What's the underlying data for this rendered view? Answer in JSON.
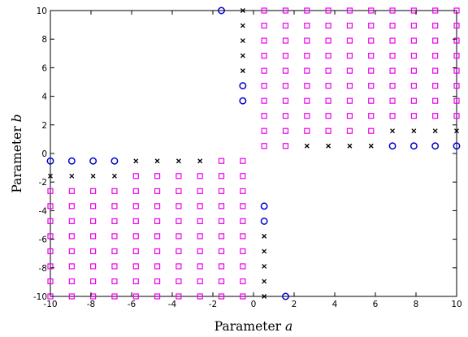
{
  "chart_data": {
    "type": "scatter",
    "xlabel": {
      "text": "Parameter ",
      "var": "a"
    },
    "ylabel": {
      "text": "Parameter ",
      "var": "b"
    },
    "xlim": [
      -10,
      10
    ],
    "ylim": [
      -10,
      10
    ],
    "xticks": [
      "-10",
      "-8",
      "-6",
      "-4",
      "-2",
      "0",
      "2",
      "4",
      "6",
      "8",
      "10"
    ],
    "yticks": [
      "-10",
      "-8",
      "-6",
      "-4",
      "-2",
      "0",
      "2",
      "4",
      "6",
      "8",
      "10"
    ],
    "grid": false,
    "legend": "none",
    "colors": {
      "square": "#ee00ee",
      "circle": "#0000cc",
      "cross": "#000000"
    },
    "grid_step_coords": [
      -10,
      -8.947,
      -7.895,
      -6.842,
      -5.789,
      -4.737,
      -3.684,
      -2.632,
      -1.579,
      -0.526,
      0.526,
      1.579,
      2.632,
      3.684,
      4.737,
      5.789,
      6.842,
      7.895,
      8.947,
      10
    ],
    "lower_left_block": {
      "circles": [
        [
          -10,
          -0.526
        ],
        [
          -8.947,
          -0.526
        ],
        [
          -7.895,
          -0.526
        ],
        [
          -6.842,
          -0.526
        ]
      ],
      "crosses": [
        [
          -5.789,
          -0.526
        ],
        [
          -4.737,
          -0.526
        ],
        [
          -3.684,
          -0.526
        ],
        [
          -2.632,
          -0.526
        ],
        [
          -10,
          -1.579
        ],
        [
          -8.947,
          -1.579
        ],
        [
          -7.895,
          -1.579
        ],
        [
          -6.842,
          -1.579
        ]
      ],
      "squares_region": {
        "x_from": -10,
        "x_to": -0.526,
        "y_from": -10,
        "y_to": -2.632,
        "extra_row": {
          "y": -1.579,
          "x_from": -5.789,
          "x_to": -0.526
        },
        "extra_row2": {
          "y": -0.526,
          "x_from": -1.579,
          "x_to": -0.526
        }
      }
    },
    "upper_right_block": {
      "circles": [
        [
          6.842,
          0.526
        ],
        [
          7.895,
          0.526
        ],
        [
          8.947,
          0.526
        ],
        [
          10,
          0.526
        ]
      ],
      "crosses": [
        [
          2.632,
          0.526
        ],
        [
          3.684,
          0.526
        ],
        [
          4.737,
          0.526
        ],
        [
          5.789,
          0.526
        ],
        [
          6.842,
          1.579
        ],
        [
          7.895,
          1.579
        ],
        [
          8.947,
          1.579
        ],
        [
          10,
          1.579
        ]
      ],
      "squares_region": {
        "x_from": 0.526,
        "x_to": 10,
        "y_from": 2.632,
        "y_to": 10,
        "extra_row": {
          "y": 1.579,
          "x_from": 0.526,
          "x_to": 5.789
        },
        "extra_row2": {
          "y": 0.526,
          "x_from": 0.526,
          "x_to": 1.579
        }
      }
    },
    "column_upper": {
      "circles": [
        [
          -1.579,
          10
        ],
        [
          -0.526,
          4.737
        ],
        [
          -0.526,
          3.684
        ]
      ],
      "crosses": [
        [
          -0.526,
          10
        ],
        [
          -0.526,
          8.947
        ],
        [
          -0.526,
          7.895
        ],
        [
          -0.526,
          6.842
        ],
        [
          -0.526,
          5.789
        ]
      ]
    },
    "column_lower": {
      "circles": [
        [
          0.526,
          -3.684
        ],
        [
          0.526,
          -4.737
        ],
        [
          1.579,
          -10
        ]
      ],
      "crosses": [
        [
          0.526,
          -5.789
        ],
        [
          0.526,
          -6.842
        ],
        [
          0.526,
          -7.895
        ],
        [
          0.526,
          -8.947
        ],
        [
          0.526,
          -10
        ]
      ]
    }
  }
}
